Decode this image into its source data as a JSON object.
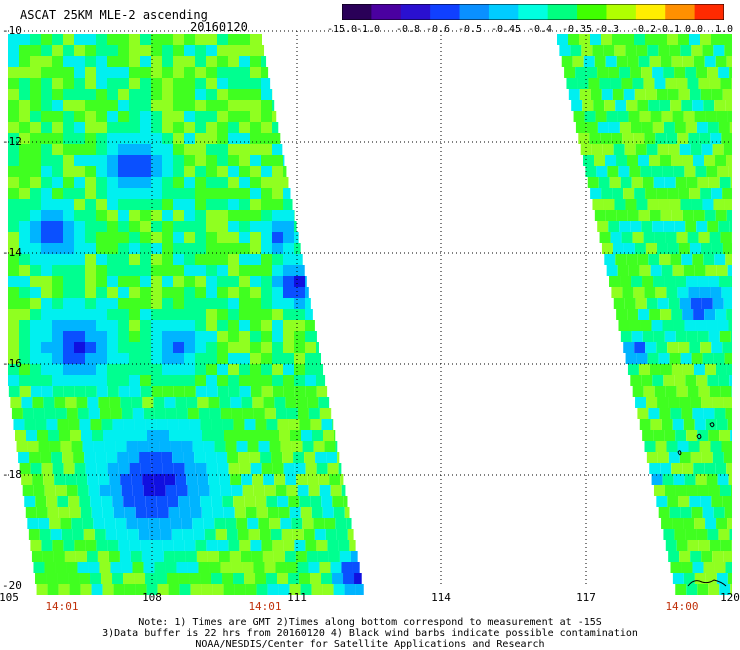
{
  "header": {
    "title": "ASCAT 25KM MLE-2 ascending",
    "date": "20160120"
  },
  "colorbar": {
    "labels": [
      "-15.0",
      "-1.0",
      "-0.8",
      "-0.6",
      "-0.5",
      "-0.45",
      "-0.4",
      "-0.35",
      "-0.3",
      "-0.2",
      "-0.1",
      "0.0",
      "1.0"
    ],
    "colors": [
      "#2a0058",
      "#4a00a0",
      "#2a10d0",
      "#1040ff",
      "#0a90ff",
      "#00ccff",
      "#00ffe0",
      "#00ff80",
      "#40ff00",
      "#b0ff00",
      "#ffee00",
      "#ff9000",
      "#ff2a00"
    ]
  },
  "axes": {
    "lat_labels": [
      "-10",
      "-12",
      "-14",
      "-16",
      "-18",
      "-20"
    ],
    "lon_labels": [
      "105",
      "108",
      "111",
      "114",
      "117",
      "120"
    ],
    "time_labels": [
      "14:01",
      "14:01",
      "14:00"
    ]
  },
  "notes": {
    "line1": "Note: 1) Times are GMT 2)Times along bottom correspond to measurement at -15S",
    "line2": "3)Data buffer is 22 hrs from 20160120 4) Black wind barbs indicate possible contamination",
    "line3": "NOAA/NESDIS/Center for Satellite Applications and Research"
  }
}
